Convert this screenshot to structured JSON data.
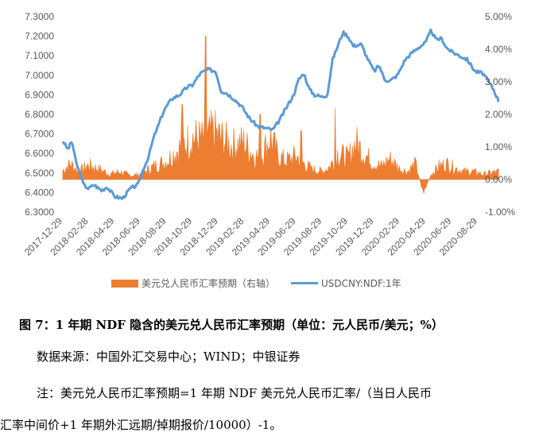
{
  "chart_data": {
    "type": "combo",
    "left_axis": {
      "min": 6.3,
      "max": 7.3,
      "ticks": [
        "6.3000",
        "6.4000",
        "6.5000",
        "6.6000",
        "6.7000",
        "6.8000",
        "6.9000",
        "7.0000",
        "7.1000",
        "7.2000",
        "7.3000"
      ]
    },
    "right_axis": {
      "min": -1.0,
      "max": 5.0,
      "ticks": [
        "-1.00%",
        "0.00%",
        "1.00%",
        "2.00%",
        "3.00%",
        "4.00%",
        "5.00%"
      ]
    },
    "x_ticks": [
      "2017-12-29",
      "2018-02-28",
      "2018-04-29",
      "2018-06-29",
      "2018-08-29",
      "2018-10-29",
      "2018-12-29",
      "2019-02-28",
      "2019-04-29",
      "2019-06-29",
      "2019-08-29",
      "2019-10-29",
      "2019-12-29",
      "2020-02-29",
      "2020-04-29",
      "2020-06-29",
      "2020-08-29"
    ],
    "series": [
      {
        "name": "美元兑人民币汇率预期（右轴）",
        "type": "area",
        "axis": "right",
        "color": "#ED7D31",
        "points": [
          [
            0,
            0.35
          ],
          [
            0.3,
            0.6
          ],
          [
            0.6,
            0.3
          ],
          [
            1.0,
            0.55
          ],
          [
            1.5,
            0.35
          ],
          [
            1.8,
            0.2
          ],
          [
            2.2,
            0.3
          ],
          [
            2.6,
            0.15
          ],
          [
            3.0,
            0.2
          ],
          [
            3.5,
            0.5
          ],
          [
            4.0,
            0.7
          ],
          [
            4.5,
            1.2
          ],
          [
            5.0,
            1.6
          ],
          [
            5.5,
            1.5
          ],
          [
            5.8,
            1.8
          ],
          [
            6.2,
            1.5
          ],
          [
            6.5,
            1.3
          ],
          [
            7.0,
            1.4
          ],
          [
            7.3,
            1.0
          ],
          [
            7.6,
            0.8
          ],
          [
            7.8,
            1.2
          ],
          [
            8.0,
            1.6
          ],
          [
            8.3,
            0.9
          ],
          [
            8.6,
            0.7
          ],
          [
            9.0,
            0.9
          ],
          [
            9.3,
            0.6
          ],
          [
            9.6,
            0.4
          ],
          [
            10.0,
            0.3
          ],
          [
            10.3,
            0.5
          ],
          [
            10.6,
            1.0
          ],
          [
            11.0,
            0.8
          ],
          [
            11.3,
            1.4
          ],
          [
            11.6,
            1.0
          ],
          [
            12.0,
            0.6
          ],
          [
            12.3,
            0.5
          ],
          [
            12.6,
            0.8
          ],
          [
            13.0,
            0.4
          ],
          [
            13.3,
            0.3
          ],
          [
            13.6,
            0.6
          ],
          [
            13.9,
            -0.5
          ],
          [
            14.2,
            0.2
          ],
          [
            14.5,
            0.5
          ],
          [
            14.8,
            0.6
          ],
          [
            15.2,
            0.4
          ],
          [
            15.5,
            0.3
          ],
          [
            15.8,
            0.3
          ],
          [
            16.2,
            0.2
          ],
          [
            16.5,
            0.25
          ],
          [
            16.8,
            0.3
          ]
        ],
        "peaks": [
          [
            5.5,
            4.4
          ],
          [
            4.6,
            2.3
          ],
          [
            10.5,
            2.2
          ],
          [
            7.6,
            2.0
          ],
          [
            9.2,
            1.5
          ]
        ]
      },
      {
        "name": "USDCNY:NDF:1年",
        "type": "line",
        "axis": "left",
        "color": "#5B9BD5",
        "points": [
          [
            0,
            6.665
          ],
          [
            0.2,
            6.62
          ],
          [
            0.35,
            6.665
          ],
          [
            0.5,
            6.56
          ],
          [
            0.8,
            6.44
          ],
          [
            1.0,
            6.42
          ],
          [
            1.2,
            6.44
          ],
          [
            1.5,
            6.41
          ],
          [
            1.7,
            6.43
          ],
          [
            2.0,
            6.38
          ],
          [
            2.3,
            6.37
          ],
          [
            2.6,
            6.42
          ],
          [
            2.9,
            6.44
          ],
          [
            3.1,
            6.52
          ],
          [
            3.3,
            6.58
          ],
          [
            3.5,
            6.68
          ],
          [
            3.7,
            6.75
          ],
          [
            3.9,
            6.82
          ],
          [
            4.2,
            6.88
          ],
          [
            4.5,
            6.9
          ],
          [
            4.8,
            6.94
          ],
          [
            5.0,
            6.95
          ],
          [
            5.3,
            7.01
          ],
          [
            5.6,
            7.03
          ],
          [
            5.9,
            7.02
          ],
          [
            6.1,
            6.92
          ],
          [
            6.3,
            6.91
          ],
          [
            6.6,
            6.88
          ],
          [
            6.9,
            6.84
          ],
          [
            7.2,
            6.78
          ],
          [
            7.5,
            6.74
          ],
          [
            7.8,
            6.73
          ],
          [
            8.1,
            6.72
          ],
          [
            8.4,
            6.78
          ],
          [
            8.6,
            6.83
          ],
          [
            8.9,
            6.9
          ],
          [
            9.1,
            6.98
          ],
          [
            9.3,
            7.01
          ],
          [
            9.5,
            6.93
          ],
          [
            9.7,
            6.9
          ],
          [
            10.0,
            6.89
          ],
          [
            10.2,
            6.9
          ],
          [
            10.4,
            7.08
          ],
          [
            10.6,
            7.15
          ],
          [
            10.8,
            7.22
          ],
          [
            11.0,
            7.2
          ],
          [
            11.2,
            7.15
          ],
          [
            11.5,
            7.16
          ],
          [
            11.7,
            7.1
          ],
          [
            12.0,
            7.02
          ],
          [
            12.2,
            7.05
          ],
          [
            12.4,
            6.98
          ],
          [
            12.6,
            6.97
          ],
          [
            12.9,
            7.0
          ],
          [
            13.2,
            7.08
          ],
          [
            13.5,
            7.12
          ],
          [
            13.7,
            7.14
          ],
          [
            14.0,
            7.17
          ],
          [
            14.2,
            7.23
          ],
          [
            14.4,
            7.18
          ],
          [
            14.6,
            7.19
          ],
          [
            14.8,
            7.14
          ],
          [
            15.0,
            7.12
          ],
          [
            15.3,
            7.1
          ],
          [
            15.6,
            7.08
          ],
          [
            15.9,
            7.02
          ],
          [
            16.2,
            7.01
          ],
          [
            16.4,
            6.97
          ],
          [
            16.6,
            6.93
          ],
          [
            16.8,
            6.87
          ]
        ]
      }
    ]
  },
  "legend": {
    "area_label": "美元兑人民币汇率预期（右轴）",
    "line_label": "USDCNY:NDF:1年",
    "area_color": "#ED7D31",
    "line_color": "#5B9BD5"
  },
  "caption": {
    "title": "图 7：1 年期 NDF 隐含的美元兑人民币汇率预期（单位：元人民币/美元；%）",
    "source": "数据来源：中国外汇交易中心；WIND；中银证券",
    "note_line1": "注：美元兑人民币汇率预期=1 年期 NDF 美元兑人民币汇率/（当日人民币",
    "note_line2": "汇率中间价+1 年期外汇远期/掉期报价/10000）-1。"
  }
}
